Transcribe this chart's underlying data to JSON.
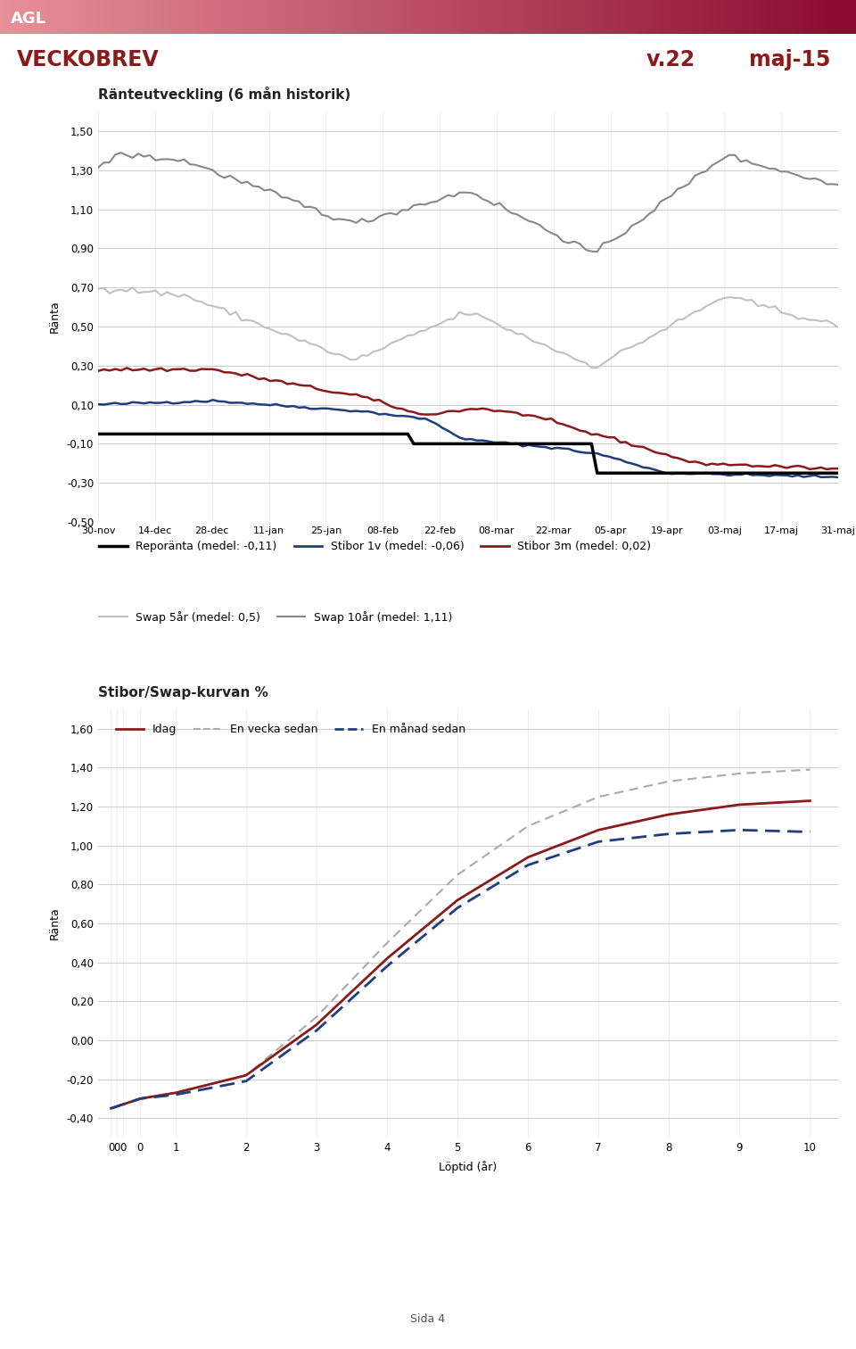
{
  "header_text": "VECKOBREV",
  "header_right1": "v.22",
  "header_right2": "maj-15",
  "chart1_title": "Ränteutveckling (6 mån historik)",
  "chart1_ylabel": "Ränta",
  "chart1_ylim": [
    -0.5,
    1.6
  ],
  "chart1_yticks": [
    -0.5,
    -0.3,
    -0.1,
    0.1,
    0.3,
    0.5,
    0.7,
    0.9,
    1.1,
    1.3,
    1.5
  ],
  "chart1_ytick_labels": [
    "-0,50",
    "-0,30",
    "-0,10",
    "0,10",
    "0,30",
    "0,50",
    "0,70",
    "0,90",
    "1,10",
    "1,30",
    "1,50"
  ],
  "chart1_xtick_labels": [
    "30-nov",
    "14-dec",
    "28-dec",
    "11-jan",
    "25-jan",
    "08-feb",
    "22-feb",
    "08-mar",
    "22-mar",
    "05-apr",
    "19-apr",
    "03-maj",
    "17-maj",
    "31-maj"
  ],
  "legend1": [
    {
      "label": "Reporänta (medel: -0,11)",
      "color": "#000000",
      "lw": 2.5
    },
    {
      "label": "Stibor 1v (medel: -0,06)",
      "color": "#1f3d7f",
      "lw": 2.0
    },
    {
      "label": "Stibor 3m (medel: 0,02)",
      "color": "#8b1a1a",
      "lw": 2.0
    },
    {
      "label": "Swap 5år (medel: 0,5)",
      "color": "#bbbbbb",
      "lw": 1.5
    },
    {
      "label": "Swap 10år (medel: 1,11)",
      "color": "#888888",
      "lw": 1.5
    }
  ],
  "chart2_title": "Stibor/Swap-kurvan %",
  "chart2_ylabel": "Ränta",
  "chart2_xlabel": "Löptid (år)",
  "chart2_ylim": [
    -0.5,
    1.7
  ],
  "chart2_yticks": [
    -0.4,
    -0.2,
    0.0,
    0.2,
    0.4,
    0.6,
    0.8,
    1.0,
    1.2,
    1.4,
    1.6
  ],
  "chart2_ytick_labels": [
    "-0,40",
    "-0,20",
    "0,00",
    "0,20",
    "0,40",
    "0,60",
    "0,80",
    "1,00",
    "1,20",
    "1,40",
    "1,60"
  ],
  "legend2": [
    {
      "label": "Idag",
      "color": "#8b1a1a",
      "lw": 2.0,
      "ls": "solid"
    },
    {
      "label": "En vecka sedan",
      "color": "#aaaaaa",
      "lw": 1.5,
      "ls": "dashed"
    },
    {
      "label": "En månad sedan",
      "color": "#1f3d7f",
      "lw": 2.0,
      "ls": "dashed"
    }
  ],
  "footer": "Sida 4",
  "bg_color": "#ffffff",
  "text_color": "#8b1a1a"
}
